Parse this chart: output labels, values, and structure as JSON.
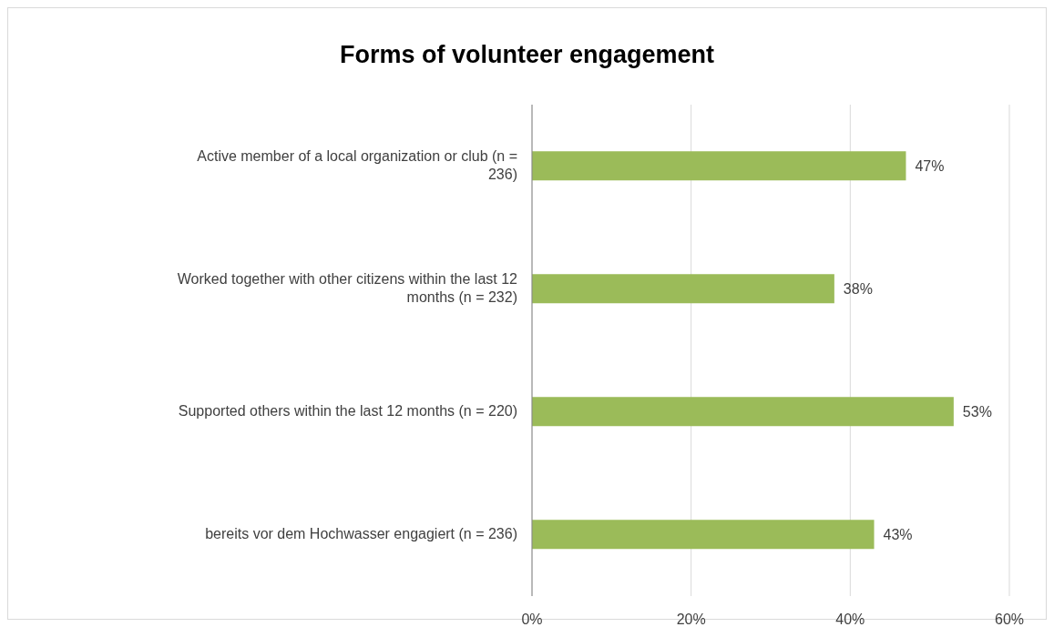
{
  "chart_data": {
    "type": "bar",
    "orientation": "horizontal",
    "title": "Forms of volunteer engagement",
    "categories": [
      "Active member of a local organization or club (n = 236)",
      "Worked together with other citizens within the last 12 months (n = 232)",
      "Supported others within the last 12 months (n = 220)",
      "bereits vor dem Hochwasser engagiert (n = 236)"
    ],
    "values": [
      47,
      38,
      53,
      43
    ],
    "color": "#9bbb59",
    "value_labels": [
      "47%",
      "38%",
      "53%",
      "43%"
    ],
    "xlim": [
      0,
      60
    ],
    "xticks": [
      {
        "value": 0,
        "label": "0%"
      },
      {
        "value": 20,
        "label": "20%"
      },
      {
        "value": 40,
        "label": "40%"
      },
      {
        "value": 60,
        "label": "60%"
      }
    ],
    "grid": "x",
    "legend": false
  }
}
